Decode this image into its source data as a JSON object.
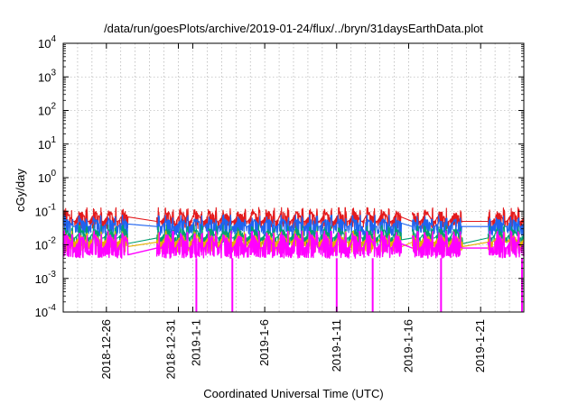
{
  "chart_data": {
    "type": "line",
    "title": "/data/run/goesPlots/archive/2019-01-24/flux/../bryn/31daysEarthData.plot",
    "xlabel": "Coordinated Universal Time (UTC)",
    "ylabel": "cGy/day",
    "yscale": "log",
    "ylim": [
      0.0001,
      10000
    ],
    "y_ticks": [
      {
        "value": 0.0001,
        "base": "10",
        "exp": "-4"
      },
      {
        "value": 0.001,
        "base": "10",
        "exp": "-3"
      },
      {
        "value": 0.01,
        "base": "10",
        "exp": "-2"
      },
      {
        "value": 0.1,
        "base": "10",
        "exp": "-1"
      },
      {
        "value": 1,
        "base": "10",
        "exp": "0"
      },
      {
        "value": 10,
        "base": "10",
        "exp": "1"
      },
      {
        "value": 100,
        "base": "10",
        "exp": "2"
      },
      {
        "value": 1000,
        "base": "10",
        "exp": "3"
      },
      {
        "value": 10000,
        "base": "10",
        "exp": "4"
      }
    ],
    "xlim": [
      "2018-12-23",
      "2019-01-24"
    ],
    "x_ticks": [
      {
        "date": "2018-12-26",
        "label": "2018-12-26"
      },
      {
        "date": "2018-12-31",
        "label": "2018-12-31"
      },
      {
        "date": "2019-01-01",
        "label": "2019-1-1"
      },
      {
        "date": "2019-01-06",
        "label": "2019-1-6"
      },
      {
        "date": "2019-01-11",
        "label": "2019-1-11"
      },
      {
        "date": "2019-01-16",
        "label": "2019-1-16"
      },
      {
        "date": "2019-01-21",
        "label": "2019-1-21"
      }
    ],
    "grid": true,
    "data_segments": [
      {
        "start": "2018-12-23T00:00",
        "end": "2018-12-27T12:00"
      },
      {
        "start": "2018-12-29T12:00",
        "end": "2019-01-15T12:00"
      },
      {
        "start": "2019-01-16T06:00",
        "end": "2019-01-19T18:00"
      },
      {
        "start": "2019-01-21T12:00",
        "end": "2019-01-24T00:00"
      }
    ],
    "dropouts": [
      "2019-01-01T06:00",
      "2019-01-03T18:00",
      "2019-01-11T00:00",
      "2019-01-13T12:00",
      "2019-01-18T06:00",
      "2019-01-23T21:00"
    ],
    "series": [
      {
        "color": "#e41a1c",
        "base": 0.05,
        "peak": 0.1,
        "min": 0.03
      },
      {
        "color": "#1e64f0",
        "base": 0.035,
        "peak": 0.06,
        "min": 0.018
      },
      {
        "color": "#00a070",
        "base": 0.016,
        "peak": 0.03,
        "min": 0.009
      },
      {
        "color": "#e8b000",
        "base": 0.012,
        "peak": 0.02,
        "min": 0.006
      },
      {
        "color": "#ff00ff",
        "base": 0.008,
        "peak": 0.02,
        "min": 0.004
      }
    ]
  }
}
